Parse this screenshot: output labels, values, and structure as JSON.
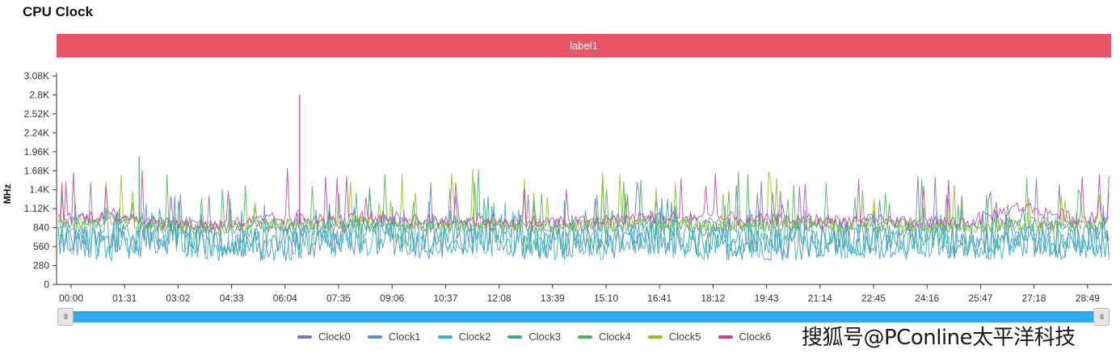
{
  "header": {
    "title": "CPU Clock"
  },
  "label_bar": {
    "text": "label1"
  },
  "watermark": {
    "text": "搜狐号@PConline太平洋科技"
  },
  "slider": {
    "start_handle": "III",
    "end_handle": "III"
  },
  "chart_data": {
    "type": "line",
    "title": "CPU Clock",
    "ylabel": "MHz",
    "xlabel": "",
    "ylim": [
      0,
      3080
    ],
    "y_ticks": [
      "0",
      "280",
      "560",
      "840",
      "1.12K",
      "1.4K",
      "1.68K",
      "1.96K",
      "2.24K",
      "2.52K",
      "2.8K",
      "3.08K"
    ],
    "x_ticks": [
      "00:00",
      "01:31",
      "03:02",
      "04:33",
      "06:04",
      "07:35",
      "09:06",
      "10:37",
      "12:08",
      "13:39",
      "15:10",
      "16:41",
      "18:12",
      "19:43",
      "21:14",
      "22:45",
      "24:16",
      "25:47",
      "27:18",
      "28:49"
    ],
    "grid": false,
    "legend_position": "bottom",
    "series": [
      {
        "name": "Clock0",
        "color": "#7b6fc6",
        "values": [
          900,
          1000,
          880,
          820,
          900,
          860,
          950,
          880,
          900,
          870,
          890,
          950,
          900,
          880,
          910,
          900,
          880,
          870,
          900,
          920
        ]
      },
      {
        "name": "Clock1",
        "color": "#4d8fdb",
        "values": [
          650,
          600,
          700,
          620,
          580,
          640,
          700,
          620,
          680,
          600,
          620,
          660,
          640,
          600,
          620,
          650,
          640,
          600,
          660,
          620
        ]
      },
      {
        "name": "Clock2",
        "color": "#36b3d1",
        "values": [
          640,
          600,
          680,
          600,
          560,
          620,
          700,
          620,
          660,
          590,
          610,
          640,
          620,
          590,
          610,
          640,
          620,
          590,
          650,
          610
        ]
      },
      {
        "name": "Clock3",
        "color": "#3aa88f",
        "values": [
          700,
          620,
          720,
          640,
          600,
          660,
          760,
          660,
          700,
          640,
          660,
          700,
          680,
          640,
          660,
          700,
          680,
          640,
          720,
          660
        ]
      },
      {
        "name": "Clock4",
        "color": "#47b65a",
        "values": [
          860,
          950,
          860,
          820,
          880,
          900,
          920,
          860,
          880,
          850,
          870,
          900,
          880,
          860,
          880,
          870,
          860,
          850,
          880,
          900
        ]
      },
      {
        "name": "Clock5",
        "color": "#8ec21f",
        "values": [
          880,
          980,
          870,
          830,
          900,
          880,
          930,
          870,
          900,
          860,
          880,
          920,
          890,
          870,
          890,
          880,
          870,
          860,
          890,
          910
        ]
      },
      {
        "name": "Clock6",
        "color": "#c0459a",
        "values": [
          950,
          1050,
          930,
          880,
          960,
          980,
          1000,
          940,
          960,
          920,
          940,
          990,
          1000,
          950,
          960,
          940,
          930,
          920,
          1150,
          980
        ]
      }
    ],
    "annotations": [
      {
        "series": "Clock4",
        "x": "01:31",
        "y": 1890
      },
      {
        "series": "Clock6",
        "x": "06:04",
        "y": 2800
      }
    ]
  }
}
